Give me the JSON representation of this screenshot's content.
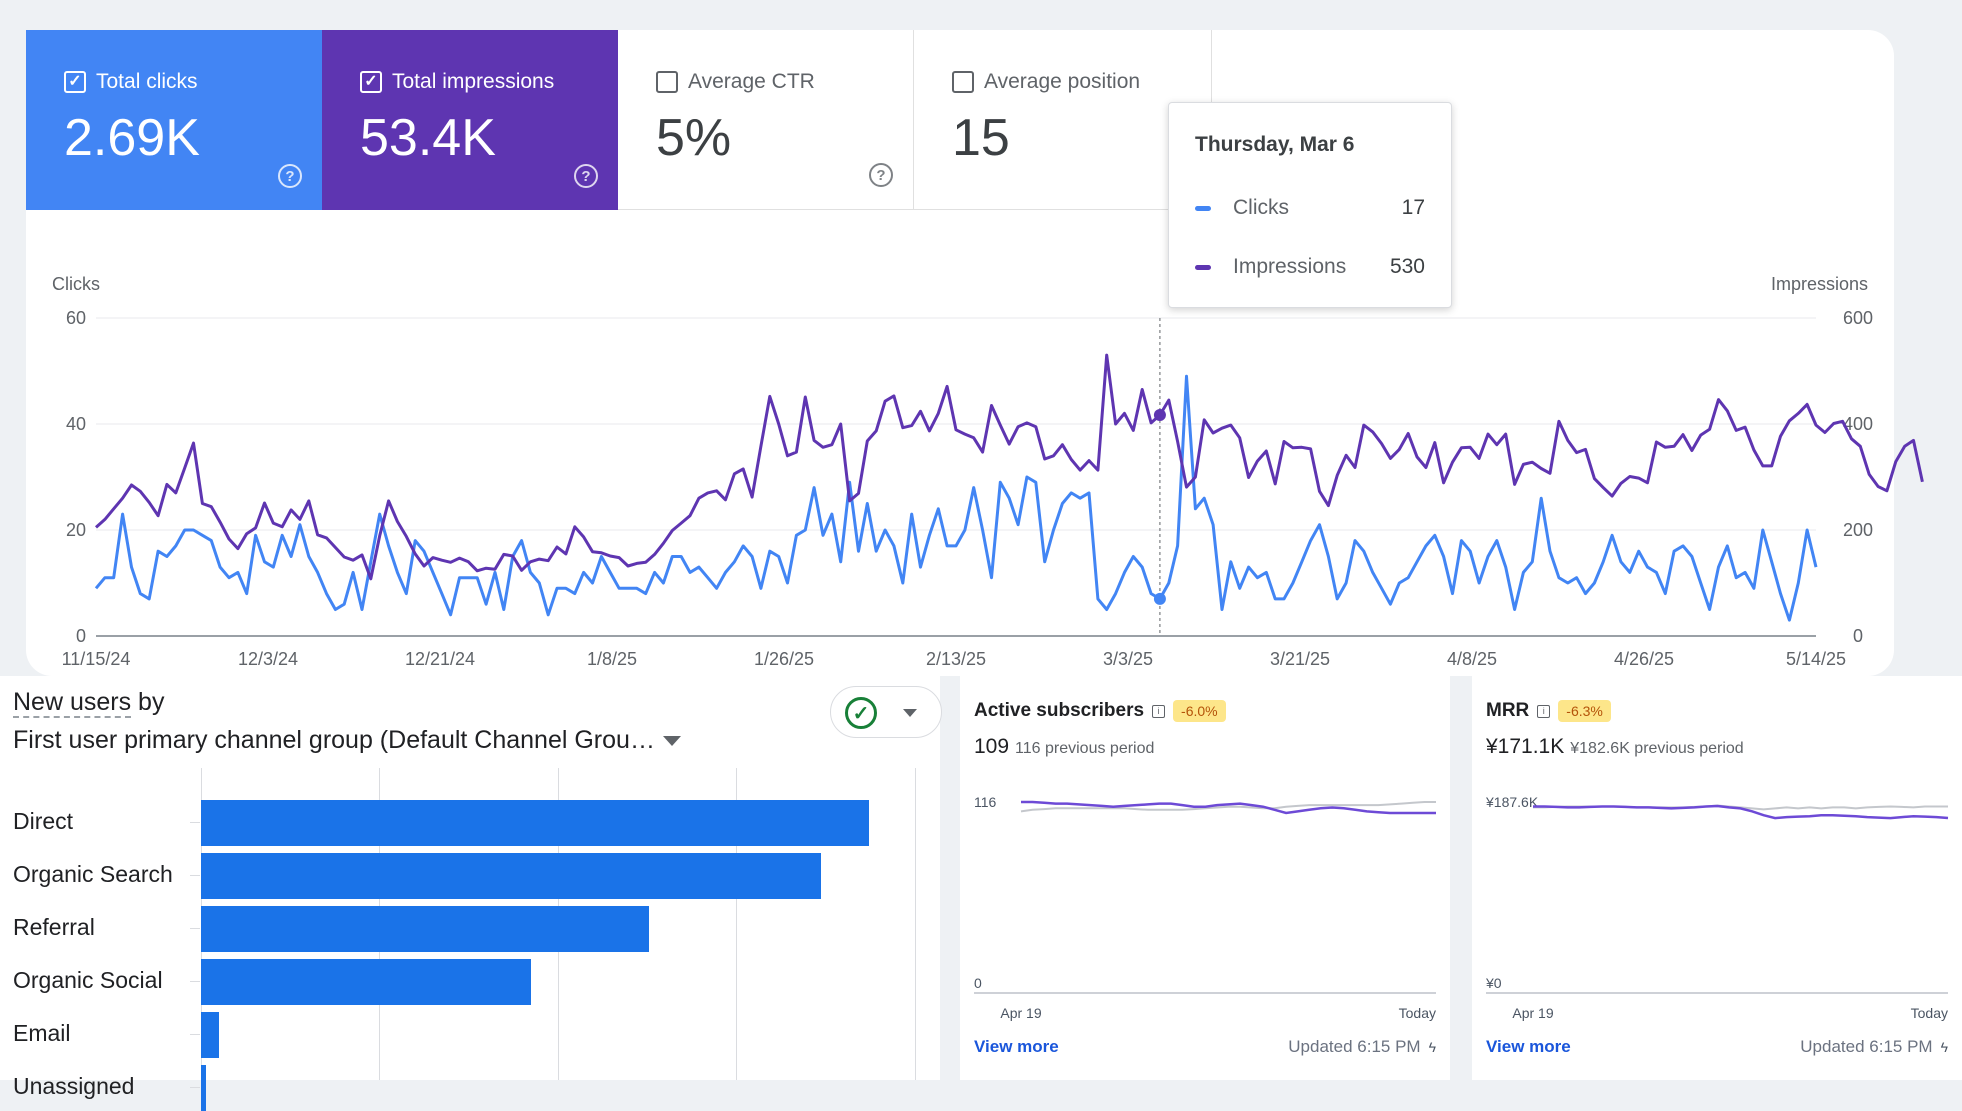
{
  "search_console": {
    "metrics": [
      {
        "label": "Total clicks",
        "value": "2.69K",
        "checked": "✓",
        "help": "?"
      },
      {
        "label": "Total impressions",
        "value": "53.4K",
        "checked": "✓",
        "help": "?"
      },
      {
        "label": "Average CTR",
        "value": "5%",
        "checked": "",
        "help": "?"
      },
      {
        "label": "Average position",
        "value": "15",
        "checked": ""
      }
    ],
    "colors": {
      "clicks": "#4285f4",
      "impressions": "#5e35b1"
    },
    "tooltip": {
      "date": "Thursday, Mar 6",
      "rows": [
        {
          "label": "Clicks",
          "value": "17"
        },
        {
          "label": "Impressions",
          "value": "530"
        }
      ]
    }
  },
  "chart_data": {
    "type": "line",
    "ylabel_left": "Clicks",
    "ylabel_right": "Impressions",
    "ylim_left": [
      0,
      60
    ],
    "ylim_right": [
      0,
      600
    ],
    "yticks_left": [
      "0",
      "20",
      "40",
      "60"
    ],
    "yticks_right": [
      "0",
      "200",
      "400",
      "600"
    ],
    "x_tick_labels": [
      "11/15/24",
      "12/3/24",
      "12/21/24",
      "1/8/25",
      "1/26/25",
      "2/13/25",
      "3/3/25",
      "3/21/25",
      "4/8/25",
      "4/26/25",
      "5/14/25"
    ],
    "x_start": "2024-11-15",
    "x_end": "2025-05-14",
    "highlight_date": "2025-03-06",
    "grid": true,
    "series": [
      {
        "name": "Clicks",
        "axis": "left",
        "values": [
          9,
          11,
          11,
          23,
          13,
          8,
          7,
          16,
          15,
          17,
          20,
          20,
          19,
          18,
          13,
          11,
          12,
          8,
          19,
          14,
          13,
          19,
          15,
          21,
          15,
          12,
          8,
          5,
          6,
          12,
          5,
          14,
          23,
          17,
          12,
          8,
          18,
          16,
          12,
          8,
          4,
          11,
          11,
          11,
          6,
          12,
          5,
          15,
          18,
          12,
          10,
          4,
          9,
          9,
          8,
          12,
          10,
          15,
          12,
          9,
          9,
          9,
          8,
          12,
          10,
          15,
          15,
          12,
          13,
          11,
          9,
          12,
          14,
          17,
          15,
          9,
          16,
          15,
          10,
          19,
          20,
          28,
          19,
          23,
          14,
          29,
          16,
          25,
          16,
          20,
          17,
          10,
          23,
          13,
          19,
          24,
          17,
          17,
          20,
          28,
          20,
          11,
          29,
          26,
          21,
          30,
          29,
          14,
          20,
          25,
          27,
          26,
          27,
          7,
          5,
          8,
          12,
          15,
          13,
          8,
          7,
          10,
          17,
          49,
          24,
          26,
          21,
          5,
          14,
          9,
          13,
          11,
          12,
          7,
          7,
          10,
          14,
          18,
          21,
          15,
          7,
          10,
          18,
          16,
          12,
          9,
          6,
          10,
          11,
          14,
          17,
          19,
          15,
          8,
          18,
          16,
          10,
          15,
          18,
          13,
          5,
          12,
          14,
          26,
          16,
          11,
          10,
          11,
          8,
          10,
          14,
          19,
          14,
          12,
          16,
          13,
          12,
          8,
          16,
          17,
          15,
          10,
          5,
          13,
          17,
          11,
          12,
          9,
          20,
          14,
          8,
          3,
          10,
          20,
          13
        ]
      },
      {
        "name": "Impressions",
        "axis": "right",
        "values": [
          205,
          220,
          240,
          260,
          285,
          273,
          252,
          227,
          286,
          270,
          317,
          364,
          250,
          244,
          215,
          183,
          165,
          193,
          204,
          251,
          213,
          206,
          238,
          220,
          255,
          191,
          185,
          167,
          149,
          143,
          153,
          108,
          189,
          255,
          216,
          188,
          155,
          132,
          148,
          143,
          139,
          147,
          140,
          123,
          128,
          126,
          154,
          151,
          124,
          140,
          145,
          142,
          168,
          155,
          206,
          187,
          159,
          157,
          151,
          148,
          132,
          137,
          139,
          154,
          175,
          199,
          213,
          227,
          260,
          270,
          274,
          257,
          306,
          315,
          262,
          358,
          452,
          400,
          340,
          347,
          451,
          369,
          356,
          361,
          400,
          255,
          269,
          368,
          387,
          443,
          453,
          393,
          397,
          424,
          387,
          420,
          471,
          389,
          381,
          374,
          347,
          435,
          398,
          362,
          395,
          402,
          395,
          334,
          340,
          361,
          333,
          313,
          331,
          313,
          530,
          400,
          420,
          388,
          465,
          402,
          417,
          445,
          367,
          281,
          300,
          408,
          383,
          392,
          398,
          374,
          299,
          330,
          349,
          287,
          367,
          355,
          356,
          353,
          273,
          246,
          303,
          341,
          318,
          398,
          385,
          363,
          335,
          352,
          382,
          338,
          318,
          365,
          289,
          328,
          355,
          356,
          335,
          381,
          361,
          381,
          286,
          324,
          328,
          316,
          307,
          405,
          369,
          346,
          352,
          297,
          280,
          264,
          288,
          301,
          298,
          289,
          366,
          356,
          358,
          380,
          350,
          379,
          390,
          446,
          425,
          388,
          394,
          351,
          321,
          321,
          377,
          406,
          420,
          437,
          398,
          384,
          401,
          405,
          372,
          358,
          305,
          282,
          274,
          329,
          358,
          369,
          291
        ]
      }
    ]
  },
  "ga_panel": {
    "title_prefix": "New users",
    "title_suffix": " by",
    "dimension": "First user primary channel group (Default Channel Grou…",
    "compare_icon": "check-circle-icon",
    "compare_glyph": "✓",
    "rows": [
      {
        "label": "Direct",
        "value": 1.0
      },
      {
        "label": "Organic Search",
        "value": 0.928
      },
      {
        "label": "Referral",
        "value": 0.67
      },
      {
        "label": "Organic Social",
        "value": 0.494
      },
      {
        "label": "Email",
        "value": 0.027
      },
      {
        "label": "Unassigned",
        "value": 0.007
      }
    ]
  },
  "subscriber_cards": [
    {
      "title": "Active subscribers",
      "info": "i",
      "badge": "-6.0%",
      "value": "109",
      "previous": "116 previous period",
      "y_top_label": "116",
      "y_bottom_label": "0",
      "x_start_label": "Apr 19",
      "x_end_label": "Today",
      "view_more": "View more",
      "updated": "Updated 6:15 PM",
      "bolt": "ϟ",
      "ylim": [
        0,
        116
      ],
      "current": [
        116,
        116,
        115.5,
        115,
        115,
        114.5,
        114,
        113.5,
        113,
        113.5,
        114,
        114.5,
        115,
        115,
        114,
        113,
        113,
        114,
        114.5,
        115,
        114,
        113,
        111,
        109,
        110,
        111,
        112,
        112.5,
        112,
        111,
        110,
        109.5,
        109,
        109,
        109,
        109,
        109
      ],
      "previous_values": [
        110,
        111,
        111.5,
        112,
        112,
        112,
        112,
        112,
        112,
        112,
        111.5,
        111,
        111,
        111,
        111,
        111.5,
        112,
        112.5,
        113,
        113,
        112.5,
        112,
        112,
        113,
        113.5,
        114,
        114,
        114,
        114,
        114,
        114,
        114,
        114.5,
        115,
        115.5,
        116,
        116
      ]
    },
    {
      "title": "MRR",
      "info": "i",
      "badge": "-6.3%",
      "value": "¥171.1K",
      "previous": "¥182.6K previous period",
      "y_top_label": "¥187.6K",
      "y_bottom_label": "¥0",
      "x_start_label": "Apr 19",
      "x_end_label": "Today",
      "view_more": "View more",
      "updated": "Updated 6:15 PM",
      "bolt": "ϟ",
      "ylim": [
        0,
        187.6
      ],
      "current": [
        183,
        183,
        182.5,
        182,
        182,
        182.5,
        183,
        183,
        182.5,
        182,
        182,
        181.5,
        181,
        181.5,
        182,
        183,
        183.5,
        182,
        181,
        178,
        174,
        171,
        172,
        172.5,
        173,
        174,
        174,
        173.5,
        173,
        172,
        171.5,
        171,
        172,
        173,
        172.5,
        172,
        171.1
      ],
      "previous_values": [
        182,
        182,
        182.5,
        183,
        183,
        183,
        183,
        183,
        182.5,
        182,
        182,
        182,
        182,
        182,
        182.5,
        183,
        184,
        183,
        182,
        181,
        180,
        181,
        182,
        181,
        182,
        181,
        182,
        182,
        181,
        182,
        182.5,
        183,
        182.5,
        182,
        183,
        183,
        183
      ]
    }
  ]
}
